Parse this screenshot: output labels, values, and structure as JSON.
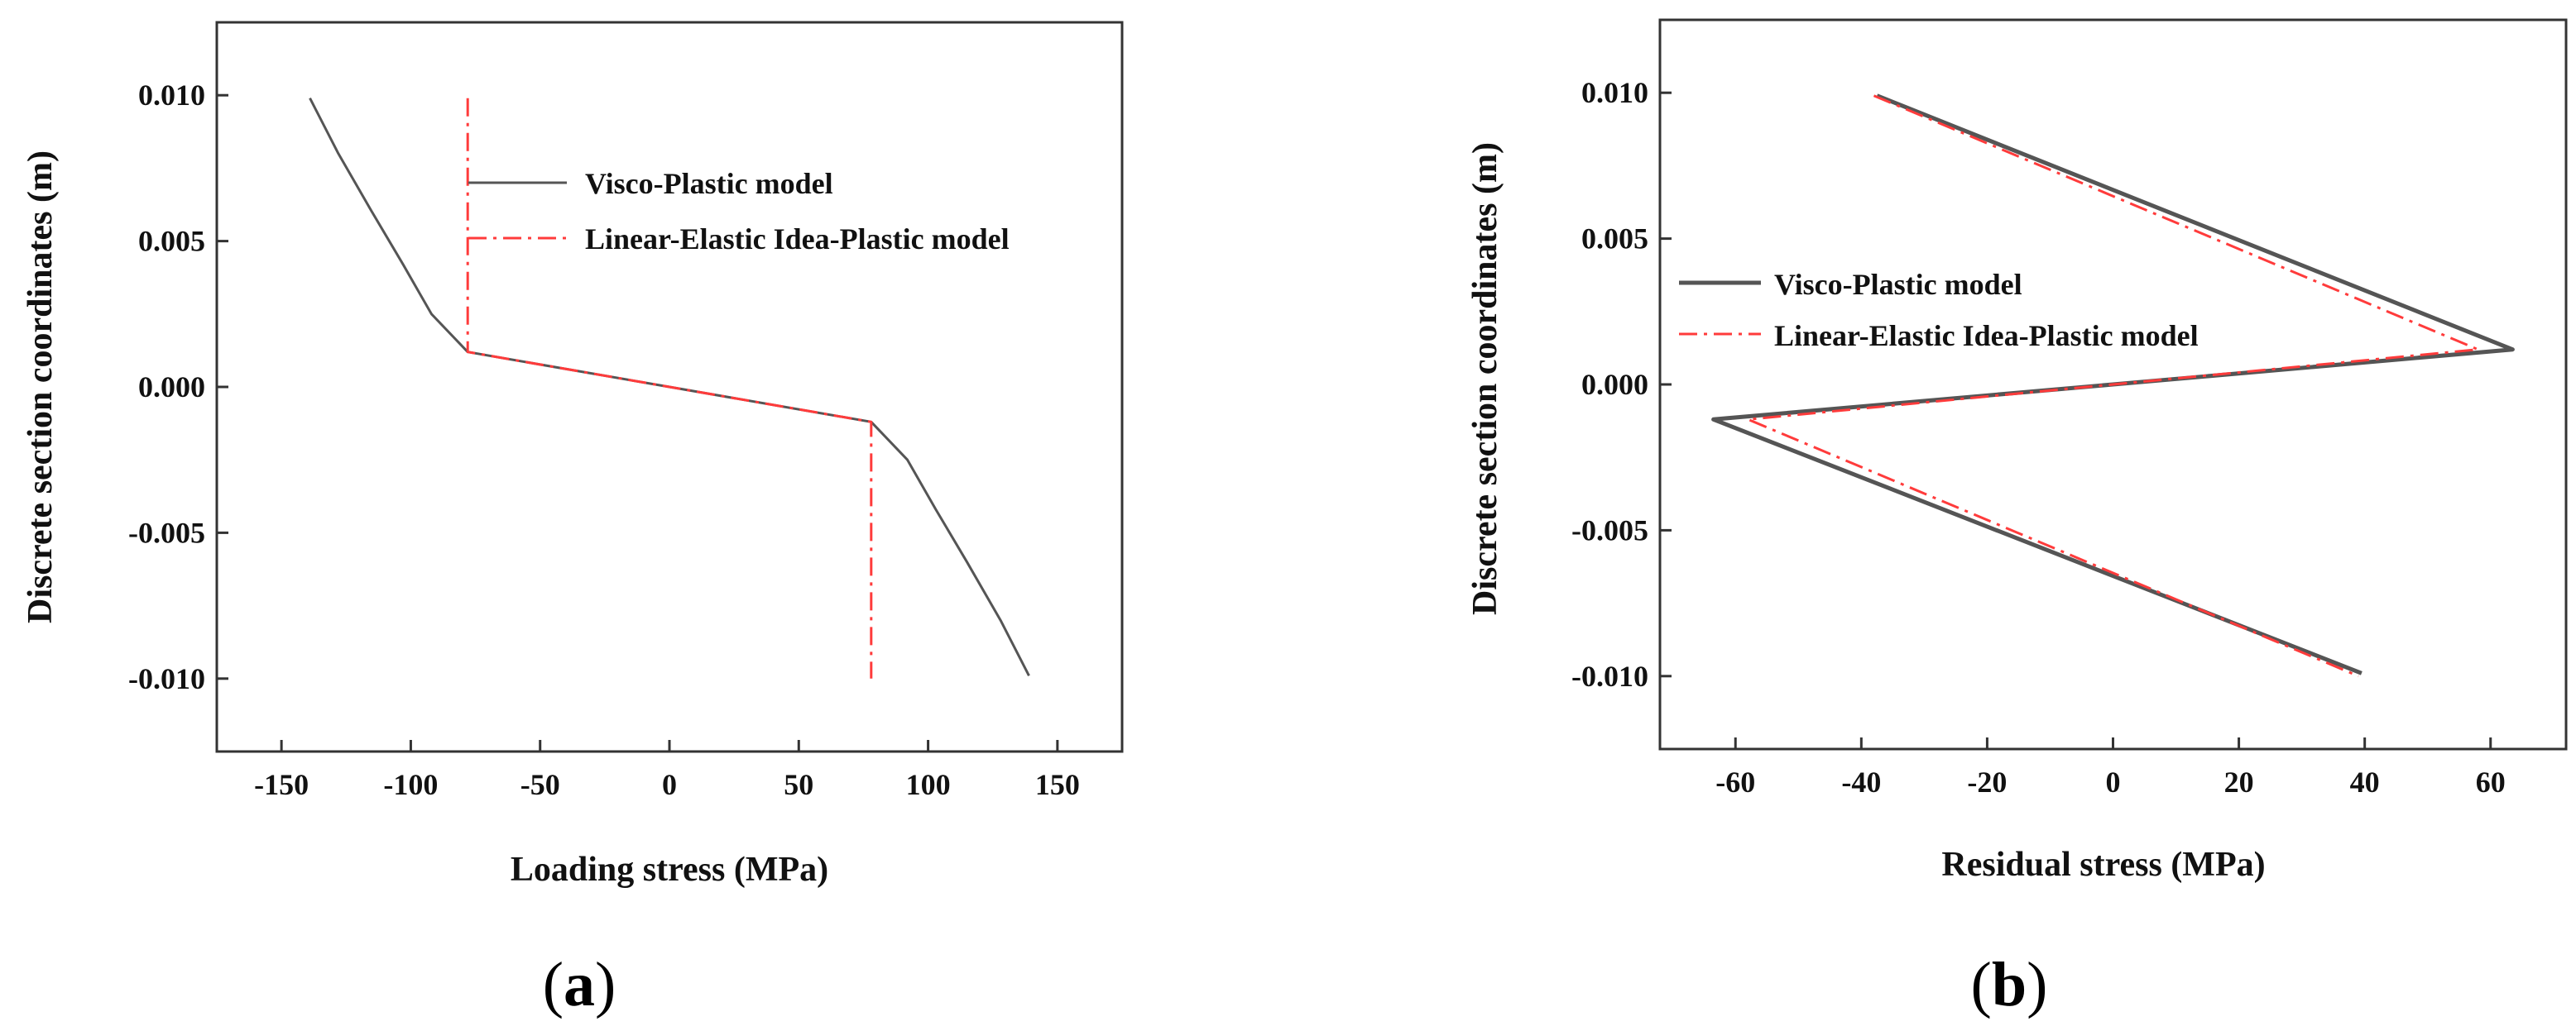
{
  "chart_data": [
    {
      "type": "line",
      "panel_label": "a",
      "title": "",
      "xlabel": "Loading stress (MPa)",
      "ylabel": "Discrete section coordinates (m)",
      "xlim": [
        -175,
        175
      ],
      "ylim": [
        -0.0125,
        0.0125
      ],
      "xticks": [
        -150,
        -100,
        -50,
        0,
        50,
        100,
        150
      ],
      "yticks": [
        0.01,
        0.005,
        0.0,
        -0.005,
        -0.01
      ],
      "xtick_labels": [
        "-150",
        "-100",
        "-50",
        "0",
        "50",
        "100",
        "150"
      ],
      "ytick_labels": [
        "0.010",
        "0.005",
        "0.000",
        "-0.005",
        "-0.010"
      ],
      "grid": false,
      "legend_position": "upper-center",
      "series": [
        {
          "name": "Visco-Plastic model",
          "color": "#555555",
          "style": "solid",
          "points": [
            [
              -139,
              0.0099
            ],
            [
              -128,
              0.008
            ],
            [
              -115,
              0.006
            ],
            [
              -103,
              0.0042
            ],
            [
              -92,
              0.0025
            ],
            [
              -78,
              0.0012
            ],
            [
              0,
              0.0
            ],
            [
              78,
              -0.0012
            ],
            [
              92,
              -0.0025
            ],
            [
              103,
              -0.0042
            ],
            [
              115,
              -0.006
            ],
            [
              128,
              -0.008
            ],
            [
              139,
              -0.0099
            ]
          ]
        },
        {
          "name": "Linear-Elastic Idea-Plastic model",
          "color": "#ff3b3b",
          "style": "dashdot",
          "points": [
            [
              -78,
              0.0099
            ],
            [
              -78,
              0.0012
            ],
            [
              0,
              0.0
            ],
            [
              78,
              -0.0012
            ],
            [
              78,
              -0.01
            ]
          ]
        }
      ]
    },
    {
      "type": "line",
      "panel_label": "b",
      "title": "",
      "xlabel": "Residual stress (MPa)",
      "ylabel": "Discrete section coordinates (m)",
      "xlim": [
        -72,
        72
      ],
      "ylim": [
        -0.0125,
        0.0125
      ],
      "xticks": [
        -60,
        -40,
        -20,
        0,
        20,
        40,
        60
      ],
      "yticks": [
        0.01,
        0.005,
        0.0,
        -0.005,
        -0.01
      ],
      "xtick_labels": [
        "-60",
        "-40",
        "-20",
        "0",
        "20",
        "40",
        "60"
      ],
      "ytick_labels": [
        "0.010",
        "0.005",
        "0.000",
        "-0.005",
        "-0.010"
      ],
      "grid": false,
      "legend_position": "middle-left",
      "series": [
        {
          "name": "Visco-Plastic model",
          "color": "#555555",
          "style": "solid",
          "points": [
            [
              -37.5,
              0.0099
            ],
            [
              63.5,
              0.0012
            ],
            [
              0,
              0.0
            ],
            [
              -63.5,
              -0.0012
            ],
            [
              39.5,
              -0.0099
            ]
          ]
        },
        {
          "name": "Linear-Elastic Idea-Plastic model",
          "color": "#ff3b3b",
          "style": "dashdot",
          "points": [
            [
              -38,
              0.0099
            ],
            [
              58,
              0.0012
            ],
            [
              0,
              0.0
            ],
            [
              -58,
              -0.0012
            ],
            [
              39,
              -0.01
            ]
          ]
        }
      ]
    }
  ]
}
